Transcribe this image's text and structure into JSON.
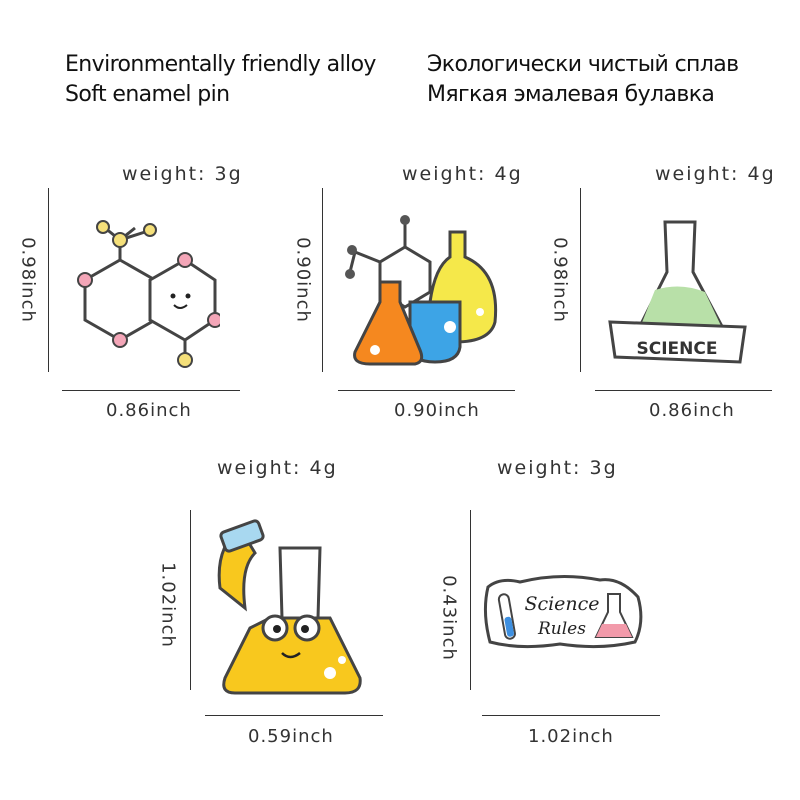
{
  "header": {
    "en_line1": "Environmentally friendly alloy",
    "en_line2": "Soft enamel pin",
    "ru_line1": "Экологически чистый сплав",
    "ru_line2": "Мягкая эмалевая булавка"
  },
  "pins": [
    {
      "name": "molecule",
      "weight": "weight:  3g",
      "height": "0.98inch",
      "width": "0.86inch"
    },
    {
      "name": "flasks",
      "weight": "weight:  4g",
      "height": "0.90inch",
      "width": "0.90inch"
    },
    {
      "name": "science-flask",
      "weight": "weight:  4g",
      "height": "0.98inch",
      "width": "0.86inch",
      "banner": "SCIENCE"
    },
    {
      "name": "beaker-character",
      "weight": "weight:  4g",
      "height": "1.02inch",
      "width": "0.59inch"
    },
    {
      "name": "science-rules",
      "weight": "weight:  3g",
      "height": "0.43inch",
      "width": "1.02inch",
      "text_line1": "Science",
      "text_line2": "Rules"
    }
  ]
}
